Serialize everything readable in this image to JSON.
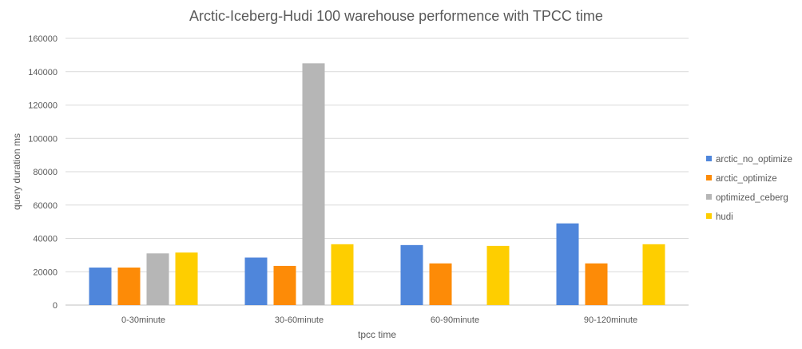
{
  "chart_data": {
    "type": "bar",
    "title": "Arctic-Iceberg-Hudi 100 warehouse performence with TPCC time",
    "xlabel": "tpcc time",
    "ylabel": "query duration ms",
    "categories": [
      "0-30minute",
      "30-60minute",
      "60-90minute",
      "90-120minute"
    ],
    "ylim": [
      0,
      160000
    ],
    "yticks": [
      "0",
      "20000",
      "40000",
      "60000",
      "80000",
      "100000",
      "120000",
      "140000",
      "160000"
    ],
    "yticks_values": [
      0,
      20000,
      40000,
      60000,
      80000,
      100000,
      120000,
      140000,
      160000
    ],
    "grid": true,
    "legend": "right",
    "series": [
      {
        "name": "arctic_no_optimize",
        "color": "#4f86db",
        "values": [
          22500,
          28500,
          36000,
          49000
        ]
      },
      {
        "name": "arctic_optimize",
        "color": "#fd8b07",
        "values": [
          22500,
          23500,
          25000,
          25000
        ]
      },
      {
        "name": "optimized_ceberg",
        "color": "#b6b6b6",
        "values": [
          31000,
          145000,
          null,
          null
        ]
      },
      {
        "name": "hudi",
        "color": "#fece00",
        "values": [
          31500,
          36500,
          35500,
          36500
        ]
      }
    ]
  }
}
